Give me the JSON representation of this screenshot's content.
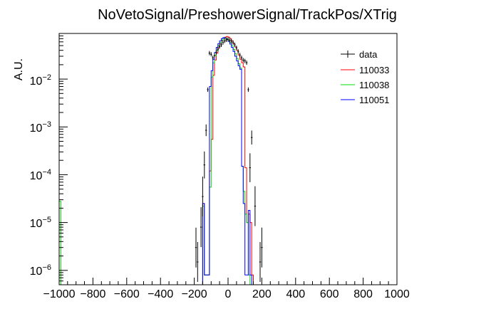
{
  "chart_data": {
    "type": "line",
    "title": "NoVetoSignal/PreshowerSignal/TrackPos/XTrig",
    "xlabel": "",
    "ylabel": "A.U.",
    "xlim": [
      -1000,
      1000
    ],
    "ylim": [
      5e-07,
      0.09
    ],
    "yscale": "log",
    "grid": false,
    "legend_position": "top-right",
    "x_ticks": [
      -1000,
      -800,
      -600,
      -400,
      -200,
      0,
      200,
      400,
      600,
      800,
      1000
    ],
    "x_tick_labels": [
      "−1000",
      "−800",
      "−600",
      "−400",
      "−200",
      "0",
      "200",
      "400",
      "600",
      "800",
      "1000"
    ],
    "y_ticks": [
      1e-06,
      1e-05,
      0.0001,
      0.001,
      0.01
    ],
    "y_tick_labels": [
      {
        "base": "10",
        "exp": "−6"
      },
      {
        "base": "10",
        "exp": "−5"
      },
      {
        "base": "10",
        "exp": "−4"
      },
      {
        "base": "10",
        "exp": "−3"
      },
      {
        "base": "10",
        "exp": "−2"
      }
    ],
    "series": [
      {
        "name": "data",
        "color": "#000000",
        "style": "points",
        "points": [
          {
            "x": -190,
            "y": 3e-06
          },
          {
            "x": -180,
            "y": 1.5e-06
          },
          {
            "x": -160,
            "y": 8e-06
          },
          {
            "x": -150,
            "y": 3.5e-05
          },
          {
            "x": -140,
            "y": 0.00016
          },
          {
            "x": -130,
            "y": 0.00085
          },
          {
            "x": -120,
            "y": 0.006
          },
          {
            "x": -110,
            "y": 0.035
          },
          {
            "x": -100,
            "y": 0.033
          },
          {
            "x": -90,
            "y": 0.028
          },
          {
            "x": -80,
            "y": 0.031
          },
          {
            "x": -70,
            "y": 0.036
          },
          {
            "x": -60,
            "y": 0.042
          },
          {
            "x": -50,
            "y": 0.048
          },
          {
            "x": -40,
            "y": 0.052
          },
          {
            "x": -30,
            "y": 0.058
          },
          {
            "x": -20,
            "y": 0.063
          },
          {
            "x": -10,
            "y": 0.066
          },
          {
            "x": 0,
            "y": 0.068
          },
          {
            "x": 10,
            "y": 0.065
          },
          {
            "x": 20,
            "y": 0.062
          },
          {
            "x": 30,
            "y": 0.058
          },
          {
            "x": 40,
            "y": 0.052
          },
          {
            "x": 50,
            "y": 0.045
          },
          {
            "x": 60,
            "y": 0.038
          },
          {
            "x": 70,
            "y": 0.032
          },
          {
            "x": 80,
            "y": 0.028
          },
          {
            "x": 90,
            "y": 0.025
          },
          {
            "x": 100,
            "y": 0.024
          },
          {
            "x": 110,
            "y": 0.022
          },
          {
            "x": 120,
            "y": 0.006
          },
          {
            "x": 130,
            "y": 0.00014
          },
          {
            "x": 140,
            "y": 0.0006
          },
          {
            "x": 160,
            "y": 2.2e-05
          },
          {
            "x": 190,
            "y": 1.5e-06
          },
          {
            "x": 200,
            "y": 3e-06
          }
        ]
      },
      {
        "name": "110033",
        "color": "#ff0000",
        "style": "step",
        "bins": [
          {
            "lo": -150,
            "hi": -140,
            "y": 2.5e-05
          },
          {
            "lo": -140,
            "hi": -130,
            "y": 8e-07
          },
          {
            "lo": -130,
            "hi": -120,
            "y": 8e-07
          },
          {
            "lo": -120,
            "hi": -110,
            "y": 8e-07
          },
          {
            "lo": -110,
            "hi": -100,
            "y": 0.00012
          },
          {
            "lo": -100,
            "hi": -90,
            "y": 0.00055
          },
          {
            "lo": -90,
            "hi": -80,
            "y": 0.012
          },
          {
            "lo": -80,
            "hi": -70,
            "y": 0.025
          },
          {
            "lo": -70,
            "hi": -60,
            "y": 0.035
          },
          {
            "lo": -60,
            "hi": -50,
            "y": 0.045
          },
          {
            "lo": -50,
            "hi": -40,
            "y": 0.055
          },
          {
            "lo": -40,
            "hi": -30,
            "y": 0.063
          },
          {
            "lo": -30,
            "hi": -20,
            "y": 0.07
          },
          {
            "lo": -20,
            "hi": -10,
            "y": 0.075
          },
          {
            "lo": -10,
            "hi": 0,
            "y": 0.078
          },
          {
            "lo": 0,
            "hi": 10,
            "y": 0.075
          },
          {
            "lo": 10,
            "hi": 20,
            "y": 0.07
          },
          {
            "lo": 20,
            "hi": 30,
            "y": 0.063
          },
          {
            "lo": 30,
            "hi": 40,
            "y": 0.055
          },
          {
            "lo": 40,
            "hi": 50,
            "y": 0.047
          },
          {
            "lo": 50,
            "hi": 60,
            "y": 0.04
          },
          {
            "lo": 60,
            "hi": 70,
            "y": 0.032
          },
          {
            "lo": 70,
            "hi": 80,
            "y": 0.026
          },
          {
            "lo": 80,
            "hi": 90,
            "y": 0.022
          },
          {
            "lo": 90,
            "hi": 100,
            "y": 0.018
          },
          {
            "lo": 100,
            "hi": 110,
            "y": 0.00014
          },
          {
            "lo": 110,
            "hi": 120,
            "y": 1e-05
          },
          {
            "lo": 120,
            "hi": 130,
            "y": 1.5e-05
          },
          {
            "lo": 130,
            "hi": 140,
            "y": 1e-05
          },
          {
            "lo": 140,
            "hi": 150,
            "y": 8e-07
          }
        ]
      },
      {
        "name": "110038",
        "color": "#00dd00",
        "style": "step",
        "bins": [
          {
            "lo": -1000,
            "hi": -990,
            "y": 2.8e-05
          },
          {
            "lo": -150,
            "hi": -140,
            "y": 2.2e-05
          },
          {
            "lo": -140,
            "hi": -130,
            "y": 8e-07
          },
          {
            "lo": -130,
            "hi": -120,
            "y": 8e-07
          },
          {
            "lo": -120,
            "hi": -110,
            "y": 8e-07
          },
          {
            "lo": -110,
            "hi": -100,
            "y": 5.5e-05
          },
          {
            "lo": -100,
            "hi": -90,
            "y": 0.011
          },
          {
            "lo": -90,
            "hi": -80,
            "y": 0.022
          },
          {
            "lo": -80,
            "hi": -70,
            "y": 0.031
          },
          {
            "lo": -70,
            "hi": -60,
            "y": 0.04
          },
          {
            "lo": -60,
            "hi": -50,
            "y": 0.05
          },
          {
            "lo": -50,
            "hi": -40,
            "y": 0.058
          },
          {
            "lo": -40,
            "hi": -30,
            "y": 0.065
          },
          {
            "lo": -30,
            "hi": -20,
            "y": 0.07
          },
          {
            "lo": -20,
            "hi": -10,
            "y": 0.073
          },
          {
            "lo": -10,
            "hi": 0,
            "y": 0.07
          },
          {
            "lo": 0,
            "hi": 10,
            "y": 0.065
          },
          {
            "lo": 10,
            "hi": 20,
            "y": 0.058
          },
          {
            "lo": 20,
            "hi": 30,
            "y": 0.05
          },
          {
            "lo": 30,
            "hi": 40,
            "y": 0.042
          },
          {
            "lo": 40,
            "hi": 50,
            "y": 0.034
          },
          {
            "lo": 50,
            "hi": 60,
            "y": 0.027
          },
          {
            "lo": 60,
            "hi": 70,
            "y": 0.021
          },
          {
            "lo": 70,
            "hi": 80,
            "y": 0.017
          },
          {
            "lo": 80,
            "hi": 90,
            "y": 0.00015
          },
          {
            "lo": 90,
            "hi": 100,
            "y": 4.5e-05
          },
          {
            "lo": 100,
            "hi": 110,
            "y": 1.5e-05
          },
          {
            "lo": 110,
            "hi": 120,
            "y": 1e-05
          },
          {
            "lo": 120,
            "hi": 130,
            "y": 8e-07
          }
        ]
      },
      {
        "name": "110051",
        "color": "#0000ff",
        "style": "step",
        "bins": [
          {
            "lo": -150,
            "hi": -140,
            "y": 2.5e-05
          },
          {
            "lo": -140,
            "hi": -130,
            "y": 8e-07
          },
          {
            "lo": -130,
            "hi": -120,
            "y": 8e-07
          },
          {
            "lo": -120,
            "hi": -110,
            "y": 8e-07
          },
          {
            "lo": -110,
            "hi": -100,
            "y": 0.007
          },
          {
            "lo": -100,
            "hi": -90,
            "y": 0.015
          },
          {
            "lo": -90,
            "hi": -80,
            "y": 0.026
          },
          {
            "lo": -80,
            "hi": -70,
            "y": 0.036
          },
          {
            "lo": -70,
            "hi": -60,
            "y": 0.046
          },
          {
            "lo": -60,
            "hi": -50,
            "y": 0.055
          },
          {
            "lo": -50,
            "hi": -40,
            "y": 0.063
          },
          {
            "lo": -40,
            "hi": -30,
            "y": 0.07
          },
          {
            "lo": -30,
            "hi": -20,
            "y": 0.074
          },
          {
            "lo": -20,
            "hi": -10,
            "y": 0.072
          },
          {
            "lo": -10,
            "hi": 0,
            "y": 0.067
          },
          {
            "lo": 0,
            "hi": 10,
            "y": 0.061
          },
          {
            "lo": 10,
            "hi": 20,
            "y": 0.054
          },
          {
            "lo": 20,
            "hi": 30,
            "y": 0.046
          },
          {
            "lo": 30,
            "hi": 40,
            "y": 0.038
          },
          {
            "lo": 40,
            "hi": 50,
            "y": 0.03
          },
          {
            "lo": 50,
            "hi": 60,
            "y": 0.024
          },
          {
            "lo": 60,
            "hi": 70,
            "y": 0.019
          },
          {
            "lo": 70,
            "hi": 80,
            "y": 0.016
          },
          {
            "lo": 80,
            "hi": 90,
            "y": 0.00015
          },
          {
            "lo": 90,
            "hi": 100,
            "y": 2.5e-05
          },
          {
            "lo": 100,
            "hi": 110,
            "y": 8e-07
          },
          {
            "lo": 110,
            "hi": 120,
            "y": 8e-07
          },
          {
            "lo": 120,
            "hi": 130,
            "y": 1.8e-05
          },
          {
            "lo": 130,
            "hi": 140,
            "y": 8e-07
          }
        ]
      }
    ]
  }
}
